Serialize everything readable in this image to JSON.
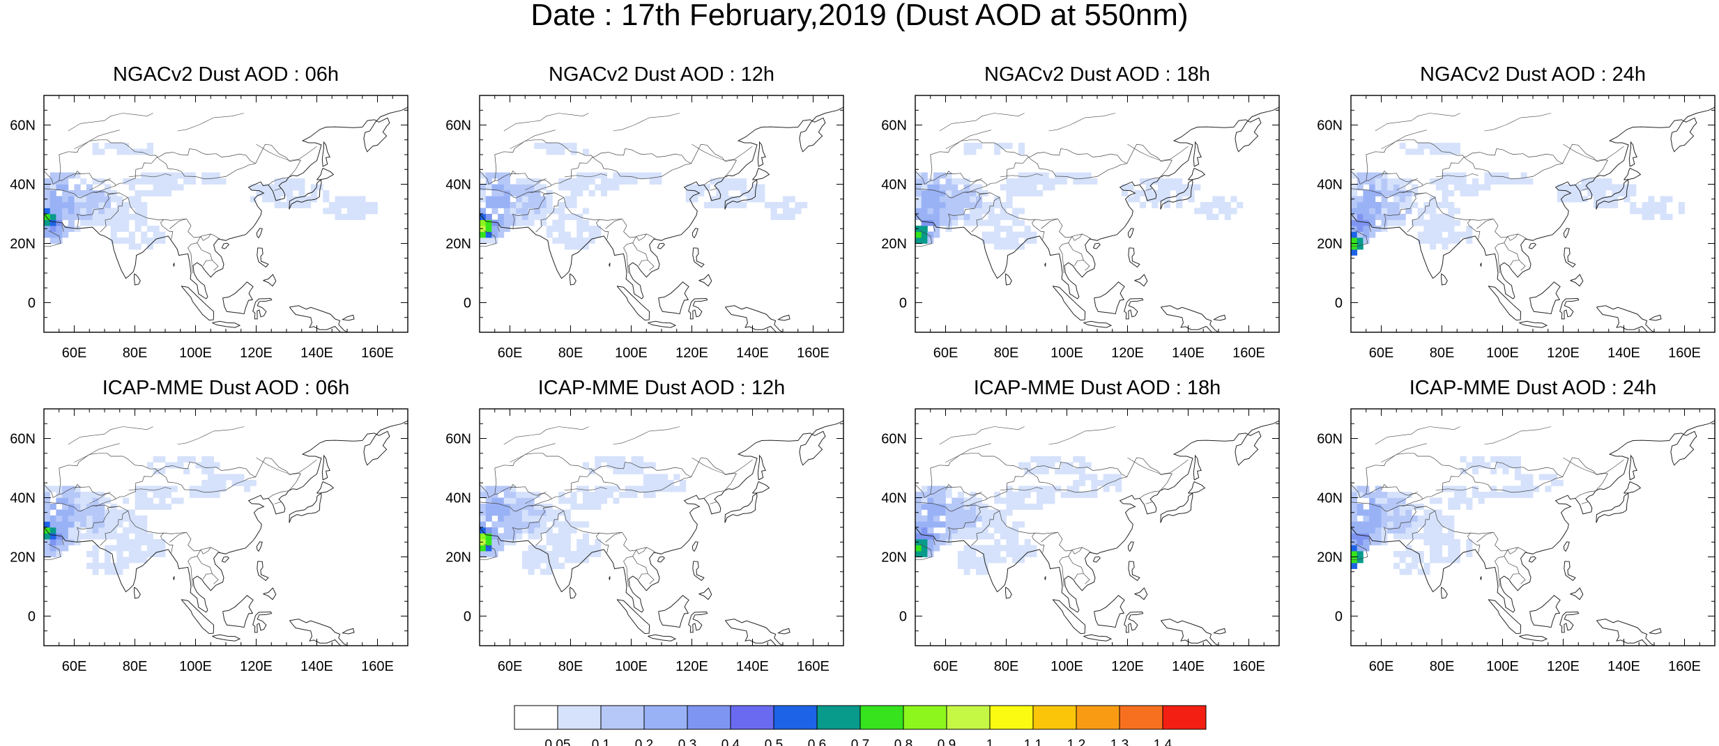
{
  "title": "Date : 17th February,2019 (Dust AOD at 550nm)",
  "axes": {
    "lat_ticks": [
      "60N",
      "40N",
      "20N",
      "0"
    ],
    "lat_values": [
      60,
      40,
      20,
      0
    ],
    "lon_ticks": [
      "60E",
      "80E",
      "100E",
      "120E",
      "140E",
      "160E"
    ],
    "lon_values": [
      60,
      80,
      100,
      120,
      140,
      160
    ],
    "lon_range": [
      50,
      170
    ],
    "lat_range": [
      -10,
      70
    ]
  },
  "panels": [
    {
      "title": "NGACv2 Dust AOD : 06h"
    },
    {
      "title": "NGACv2 Dust AOD : 12h"
    },
    {
      "title": "NGACv2 Dust AOD : 18h"
    },
    {
      "title": "NGACv2 Dust AOD : 24h"
    },
    {
      "title": "ICAP-MME Dust AOD : 06h"
    },
    {
      "title": "ICAP-MME Dust AOD : 12h"
    },
    {
      "title": "ICAP-MME Dust AOD : 18h"
    },
    {
      "title": "ICAP-MME Dust AOD : 24h"
    }
  ],
  "colorbar": {
    "labels": [
      "0.05",
      "0.1",
      "0.2",
      "0.3",
      "0.4",
      "0.5",
      "0.6",
      "0.7",
      "0.8",
      "0.9",
      "1",
      "1.1",
      "1.2",
      "1.3",
      "1.4"
    ],
    "colors": [
      "#ffffff",
      "#d6e2fb",
      "#b6c8f8",
      "#99b2f6",
      "#7f95f2",
      "#6a6af0",
      "#1d63e8",
      "#089a8a",
      "#36e31d",
      "#8df61d",
      "#c5f844",
      "#fbfb12",
      "#fbc60a",
      "#f99c14",
      "#f7701f",
      "#f21f12"
    ]
  }
}
